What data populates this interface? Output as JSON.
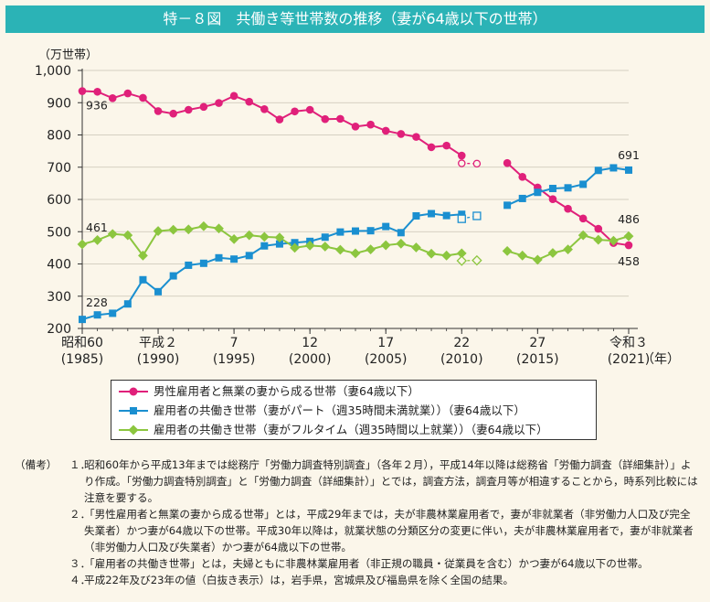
{
  "title": "特－８図　共働き等世帯数の推移（妻が64歳以下の世帯）",
  "chart_data": {
    "type": "line",
    "ylabel": "（万世帯）",
    "xunit": "（年）",
    "ylim": [
      200,
      1000
    ],
    "yticks": [
      "200",
      "300",
      "400",
      "500",
      "600",
      "700",
      "800",
      "900",
      "1,000"
    ],
    "xticks": [
      {
        "year": 1985,
        "line1": "昭和60",
        "line2": "(1985)"
      },
      {
        "year": 1990,
        "line1": "平成２",
        "line2": "(1990)"
      },
      {
        "year": 1995,
        "line1": "7",
        "line2": "(1995)"
      },
      {
        "year": 2000,
        "line1": "12",
        "line2": "(2000)"
      },
      {
        "year": 2005,
        "line1": "17",
        "line2": "(2005)"
      },
      {
        "year": 2010,
        "line1": "22",
        "line2": "(2010)"
      },
      {
        "year": 2015,
        "line1": "27",
        "line2": "(2015)"
      },
      {
        "year": 2021,
        "line1": "令和３",
        "line2": "(2021)"
      }
    ],
    "series": [
      {
        "name": "男性雇用者と無業の妻から成る世帯（妻64歳以下）",
        "color": "#e0207a",
        "marker": "circle",
        "segments": [
          {
            "x": [
              1985,
              1986,
              1987,
              1988,
              1989,
              1990,
              1991,
              1992,
              1993,
              1994,
              1995,
              1996,
              1997,
              1998,
              1999,
              2000,
              2001,
              2002,
              2003,
              2004,
              2005,
              2006,
              2007,
              2008,
              2009,
              2010
            ],
            "y": [
              936,
              934,
              914,
              929,
              915,
              874,
              866,
              878,
              887,
              899,
              921,
              903,
              880,
              848,
              873,
              878,
              849,
              850,
              826,
              832,
              813,
              803,
              794,
              762,
              767,
              736
            ]
          },
          {
            "x": [
              2013,
              2014,
              2015,
              2016,
              2017,
              2018,
              2019,
              2020,
              2021
            ],
            "y": [
              713,
              670,
              637,
              601,
              571,
              541,
              509,
              465,
              458
            ]
          }
        ],
        "excluded": {
          "x": [
            2010,
            2011
          ],
          "y": [
            712,
            711
          ]
        },
        "annotations": [
          {
            "x": 1985,
            "y": 936,
            "text": "936"
          },
          {
            "x": 2021,
            "y": 458,
            "text": "458"
          }
        ]
      },
      {
        "name": "雇用者の共働き世帯（妻がパート（週35時間未満就業））（妻64歳以下）",
        "color": "#1a8fd0",
        "marker": "square",
        "segments": [
          {
            "x": [
              1985,
              1986,
              1987,
              1988,
              1989,
              1990,
              1991,
              1992,
              1993,
              1994,
              1995,
              1996,
              1997,
              1998,
              1999,
              2000,
              2001,
              2002,
              2003,
              2004,
              2005,
              2006,
              2007,
              2008,
              2009,
              2010
            ],
            "y": [
              228,
              242,
              247,
              276,
              351,
              314,
              363,
              396,
              402,
              419,
              415,
              426,
              456,
              462,
              466,
              470,
              483,
              499,
              502,
              503,
              516,
              497,
              549,
              556,
              550,
              554
            ]
          },
          {
            "x": [
              2013,
              2014,
              2015,
              2016,
              2017,
              2018,
              2019,
              2020,
              2021
            ],
            "y": [
              582,
              603,
              622,
              634,
              636,
              647,
              690,
              698,
              691
            ]
          }
        ],
        "excluded": {
          "x": [
            2010,
            2011
          ],
          "y": [
            540,
            549
          ]
        },
        "annotations": [
          {
            "x": 1985,
            "y": 228,
            "text": "228"
          },
          {
            "x": 2021,
            "y": 691,
            "text": "691"
          }
        ]
      },
      {
        "name": "雇用者の共働き世帯（妻がフルタイム（週35時間以上就業））（妻64歳以下）",
        "color": "#8cc63f",
        "marker": "diamond",
        "segments": [
          {
            "x": [
              1985,
              1986,
              1987,
              1988,
              1989,
              1990,
              1991,
              1992,
              1993,
              1994,
              1995,
              1996,
              1997,
              1998,
              1999,
              2000,
              2001,
              2002,
              2003,
              2004,
              2005,
              2006,
              2007,
              2008,
              2009,
              2010
            ],
            "y": [
              461,
              474,
              493,
              489,
              426,
              502,
              506,
              507,
              517,
              510,
              477,
              489,
              484,
              482,
              450,
              457,
              454,
              444,
              433,
              445,
              458,
              463,
              451,
              432,
              426,
              433
            ]
          },
          {
            "x": [
              2013,
              2014,
              2015,
              2016,
              2017,
              2018,
              2019,
              2020,
              2021
            ],
            "y": [
              440,
              426,
              413,
              434,
              445,
              489,
              475,
              472,
              486
            ]
          }
        ],
        "excluded": {
          "x": [
            2010,
            2011
          ],
          "y": [
            410,
            411
          ]
        },
        "annotations": [
          {
            "x": 1985,
            "y": 461,
            "text": "461"
          },
          {
            "x": 2021,
            "y": 486,
            "text": "486"
          }
        ]
      }
    ]
  },
  "notes": {
    "lead": "（備考）",
    "items": [
      {
        "num": "１．",
        "text": "昭和60年から平成13年までは総務庁「労働力調査特別調査」（各年２月），平成14年以降は総務省「労働力調査（詳細集計）」より作成。「労働力調査特別調査」と「労働力調査（詳細集計）」とでは，調査方法，調査月等が相違することから，時系列比較には注意を要する。"
      },
      {
        "num": "２．",
        "text": "「男性雇用者と無業の妻から成る世帯」とは，平成29年までは，夫が非農林業雇用者で，妻が非就業者（非労働力人口及び完全失業者）かつ妻が64歳以下の世帯。平成30年以降は，就業状態の分類区分の変更に伴い，夫が非農林業雇用者で，妻が非就業者（非労働力人口及び失業者）かつ妻が64歳以下の世帯。"
      },
      {
        "num": "３．",
        "text": "「雇用者の共働き世帯」とは，夫婦ともに非農林業雇用者（非正規の職員・従業員を含む）かつ妻が64歳以下の世帯。"
      },
      {
        "num": "４．",
        "text": "平成22年及び23年の値（白抜き表示）は，岩手県，宮城県及び福島県を除く全国の結果。"
      }
    ]
  }
}
